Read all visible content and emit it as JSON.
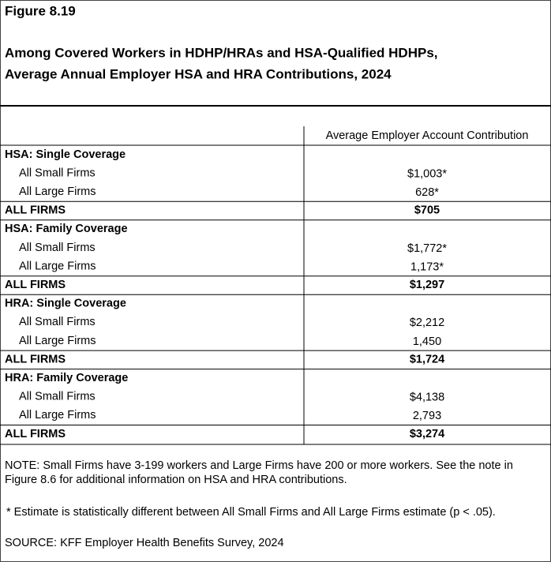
{
  "figure": "Figure 8.19",
  "title": [
    "Among Covered Workers in HDHP/HRAs and HSA-Qualified HDHPs,",
    "Average Annual Employer HSA and HRA Contributions, 2024"
  ],
  "table": {
    "header": "Average Employer Account Contribution",
    "groups": [
      {
        "title": "HSA: Single Coverage",
        "rows": [
          [
            "All Small Firms",
            "$1,003*"
          ],
          [
            "All Large Firms",
            "628*"
          ]
        ],
        "total": [
          "ALL FIRMS",
          "$705"
        ]
      },
      {
        "title": "HSA: Family Coverage",
        "rows": [
          [
            "All Small Firms",
            "$1,772*"
          ],
          [
            "All Large Firms",
            "1,173*"
          ]
        ],
        "total": [
          "ALL FIRMS",
          "$1,297"
        ]
      },
      {
        "title": "HRA: Single Coverage",
        "rows": [
          [
            "All Small Firms",
            "$2,212"
          ],
          [
            "All Large Firms",
            "1,450"
          ]
        ],
        "total": [
          "ALL FIRMS",
          "$1,724"
        ]
      },
      {
        "title": "HRA: Family Coverage",
        "rows": [
          [
            "All Small Firms",
            "$4,138"
          ],
          [
            "All Large Firms",
            "2,793"
          ]
        ],
        "total": [
          "ALL FIRMS",
          "$3,274"
        ]
      }
    ]
  },
  "notes": {
    "note": [
      "NOTE: Small Firms have 3-199 workers and Large Firms have 200 or more workers. See the note in",
      "Figure 8.6 for additional information on HSA and HRA contributions."
    ],
    "asterisk": "* Estimate is statistically different between All Small Firms and All Large Firms estimate (p < .05).",
    "source": "SOURCE: KFF Employer Health Benefits Survey, 2024"
  }
}
